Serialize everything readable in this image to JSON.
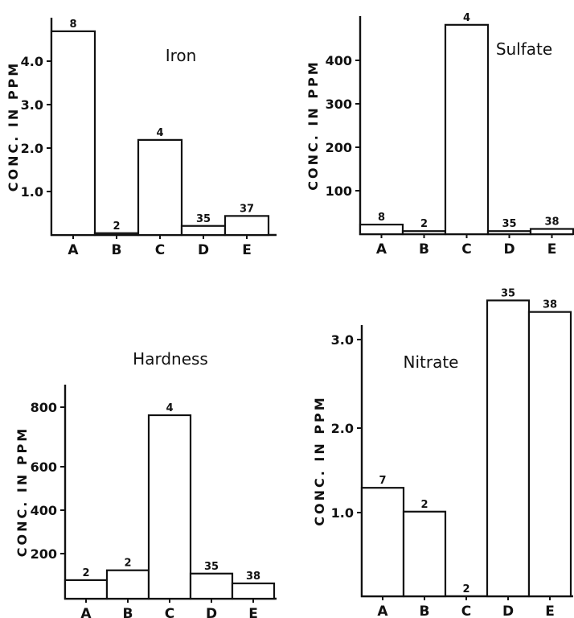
{
  "chart_data": [
    {
      "type": "bar",
      "title": "Iron",
      "ylabel": "CONC. IN PPM",
      "categories": [
        "A",
        "B",
        "C",
        "D",
        "E"
      ],
      "values": [
        4.5,
        0.04,
        2.1,
        0.2,
        0.42
      ],
      "bar_labels": [
        "8",
        "2",
        "4",
        "35",
        "37"
      ],
      "yticks": [
        "1.0",
        "2.0",
        "3.0",
        "4.0"
      ],
      "ylim": [
        0,
        4.8
      ]
    },
    {
      "type": "bar",
      "title": "Sulfate",
      "ylabel": "CONC. IN PPM",
      "categories": [
        "A",
        "B",
        "C",
        "D",
        "E"
      ],
      "values": [
        22,
        7,
        480,
        7,
        12
      ],
      "bar_labels": [
        "8",
        "2",
        "4",
        "35",
        "38"
      ],
      "yticks": [
        "100",
        "200",
        "300",
        "400"
      ],
      "ylim": [
        0,
        500
      ]
    },
    {
      "type": "bar",
      "title": "Hardness",
      "ylabel": "CONC. IN PPM",
      "categories": [
        "A",
        "B",
        "C",
        "D",
        "E"
      ],
      "values": [
        85,
        130,
        840,
        115,
        70
      ],
      "bar_labels": [
        "2",
        "2",
        "4",
        "35",
        "38"
      ],
      "yticks": [
        "200",
        "400",
        "600",
        "800"
      ],
      "ylim": [
        0,
        980
      ]
    },
    {
      "type": "bar",
      "title": "Nitrate",
      "ylabel": "CONC. IN PPM",
      "categories": [
        "A",
        "B",
        "C",
        "D",
        "E"
      ],
      "values": [
        1.32,
        1.03,
        0,
        3.6,
        3.46
      ],
      "bar_labels": [
        "7",
        "2",
        "2",
        "35",
        "38"
      ],
      "yticks": [
        "1.0",
        "2.0",
        "3.0"
      ],
      "ylim": [
        0,
        3.3
      ]
    }
  ]
}
